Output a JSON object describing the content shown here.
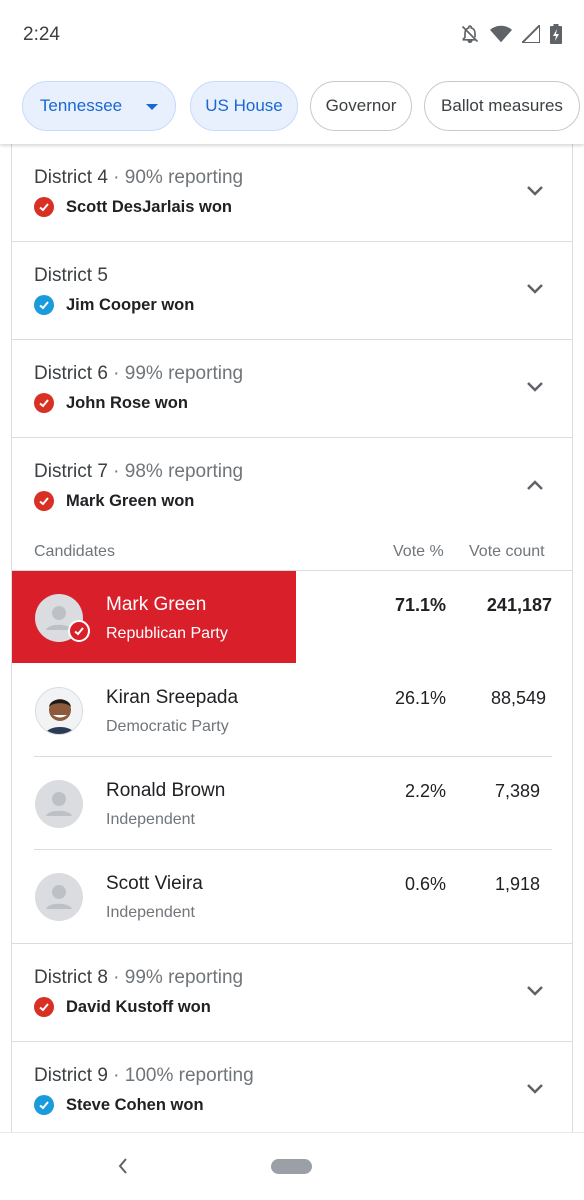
{
  "status_bar": {
    "time": "2:24"
  },
  "chips": [
    {
      "label": "Tennessee",
      "active": true,
      "dropdown": true
    },
    {
      "label": "US House",
      "active": true
    },
    {
      "label": "Governor",
      "active": false
    },
    {
      "label": "Ballot measures",
      "active": false
    }
  ],
  "districts_top": [
    {
      "name": "District 4",
      "reporting": " · 90% reporting",
      "winner": "Scott DesJarlais won",
      "party_color": "#d93025"
    },
    {
      "name": "District 5",
      "reporting": "",
      "winner": "Jim Cooper won",
      "party_color": "#1a9bdb"
    },
    {
      "name": "District 6",
      "reporting": " · 99% reporting",
      "winner": "John Rose won",
      "party_color": "#d93025"
    }
  ],
  "expanded_district": {
    "name": "District 7",
    "reporting": " · 98% reporting",
    "winner": "Mark Green won",
    "columns": {
      "candidates": "Candidates",
      "vote_pct": "Vote %",
      "vote_count": "Vote count"
    },
    "candidates": [
      {
        "name": "Mark Green",
        "party": "Republican Party",
        "pct": "71.1%",
        "count": "241,187",
        "winner": true
      },
      {
        "name": "Kiran Sreepada",
        "party": "Democratic Party",
        "pct": "26.1%",
        "count": "88,549",
        "winner": false
      },
      {
        "name": "Ronald Brown",
        "party": "Independent",
        "pct": "2.2%",
        "count": "7,389",
        "winner": false
      },
      {
        "name": "Scott Vieira",
        "party": "Independent",
        "pct": "0.6%",
        "count": "1,918",
        "winner": false
      }
    ]
  },
  "districts_bottom": [
    {
      "name": "District 8",
      "reporting": " · 99% reporting",
      "winner": "David Kustoff won",
      "party_color": "#d93025"
    },
    {
      "name": "District 9",
      "reporting": " · 100% reporting",
      "winner": "Steve Cohen won",
      "party_color": "#1a9bdb"
    }
  ],
  "colors": {
    "republican": "#d9202a",
    "democrat": "#1a9bdb",
    "chip_active_bg": "#e8f0fe",
    "chip_active_text": "#1967d2"
  }
}
